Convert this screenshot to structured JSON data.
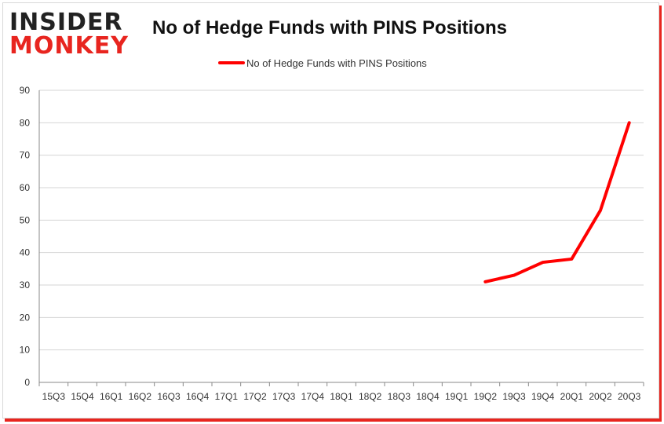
{
  "logo": {
    "line1": "INSIDER",
    "line2": "MONKEY"
  },
  "chart_data": {
    "type": "line",
    "title": "No of Hedge Funds with PINS Positions",
    "xlabel": "",
    "ylabel": "",
    "categories": [
      "15Q3",
      "15Q4",
      "16Q1",
      "16Q2",
      "16Q3",
      "16Q4",
      "17Q1",
      "17Q2",
      "17Q3",
      "17Q4",
      "18Q1",
      "18Q2",
      "18Q3",
      "18Q4",
      "19Q1",
      "19Q2",
      "19Q3",
      "19Q4",
      "20Q1",
      "20Q2",
      "20Q3"
    ],
    "series": [
      {
        "name": "No of Hedge Funds with PINS Positions",
        "color": "#ff0000",
        "values": [
          null,
          null,
          null,
          null,
          null,
          null,
          null,
          null,
          null,
          null,
          null,
          null,
          null,
          null,
          null,
          31,
          33,
          37,
          38,
          53,
          80
        ]
      }
    ],
    "ylim": [
      0,
      90
    ],
    "yticks": [
      0,
      10,
      20,
      30,
      40,
      50,
      60,
      70,
      80,
      90
    ],
    "grid": true,
    "legend": "top-center"
  }
}
